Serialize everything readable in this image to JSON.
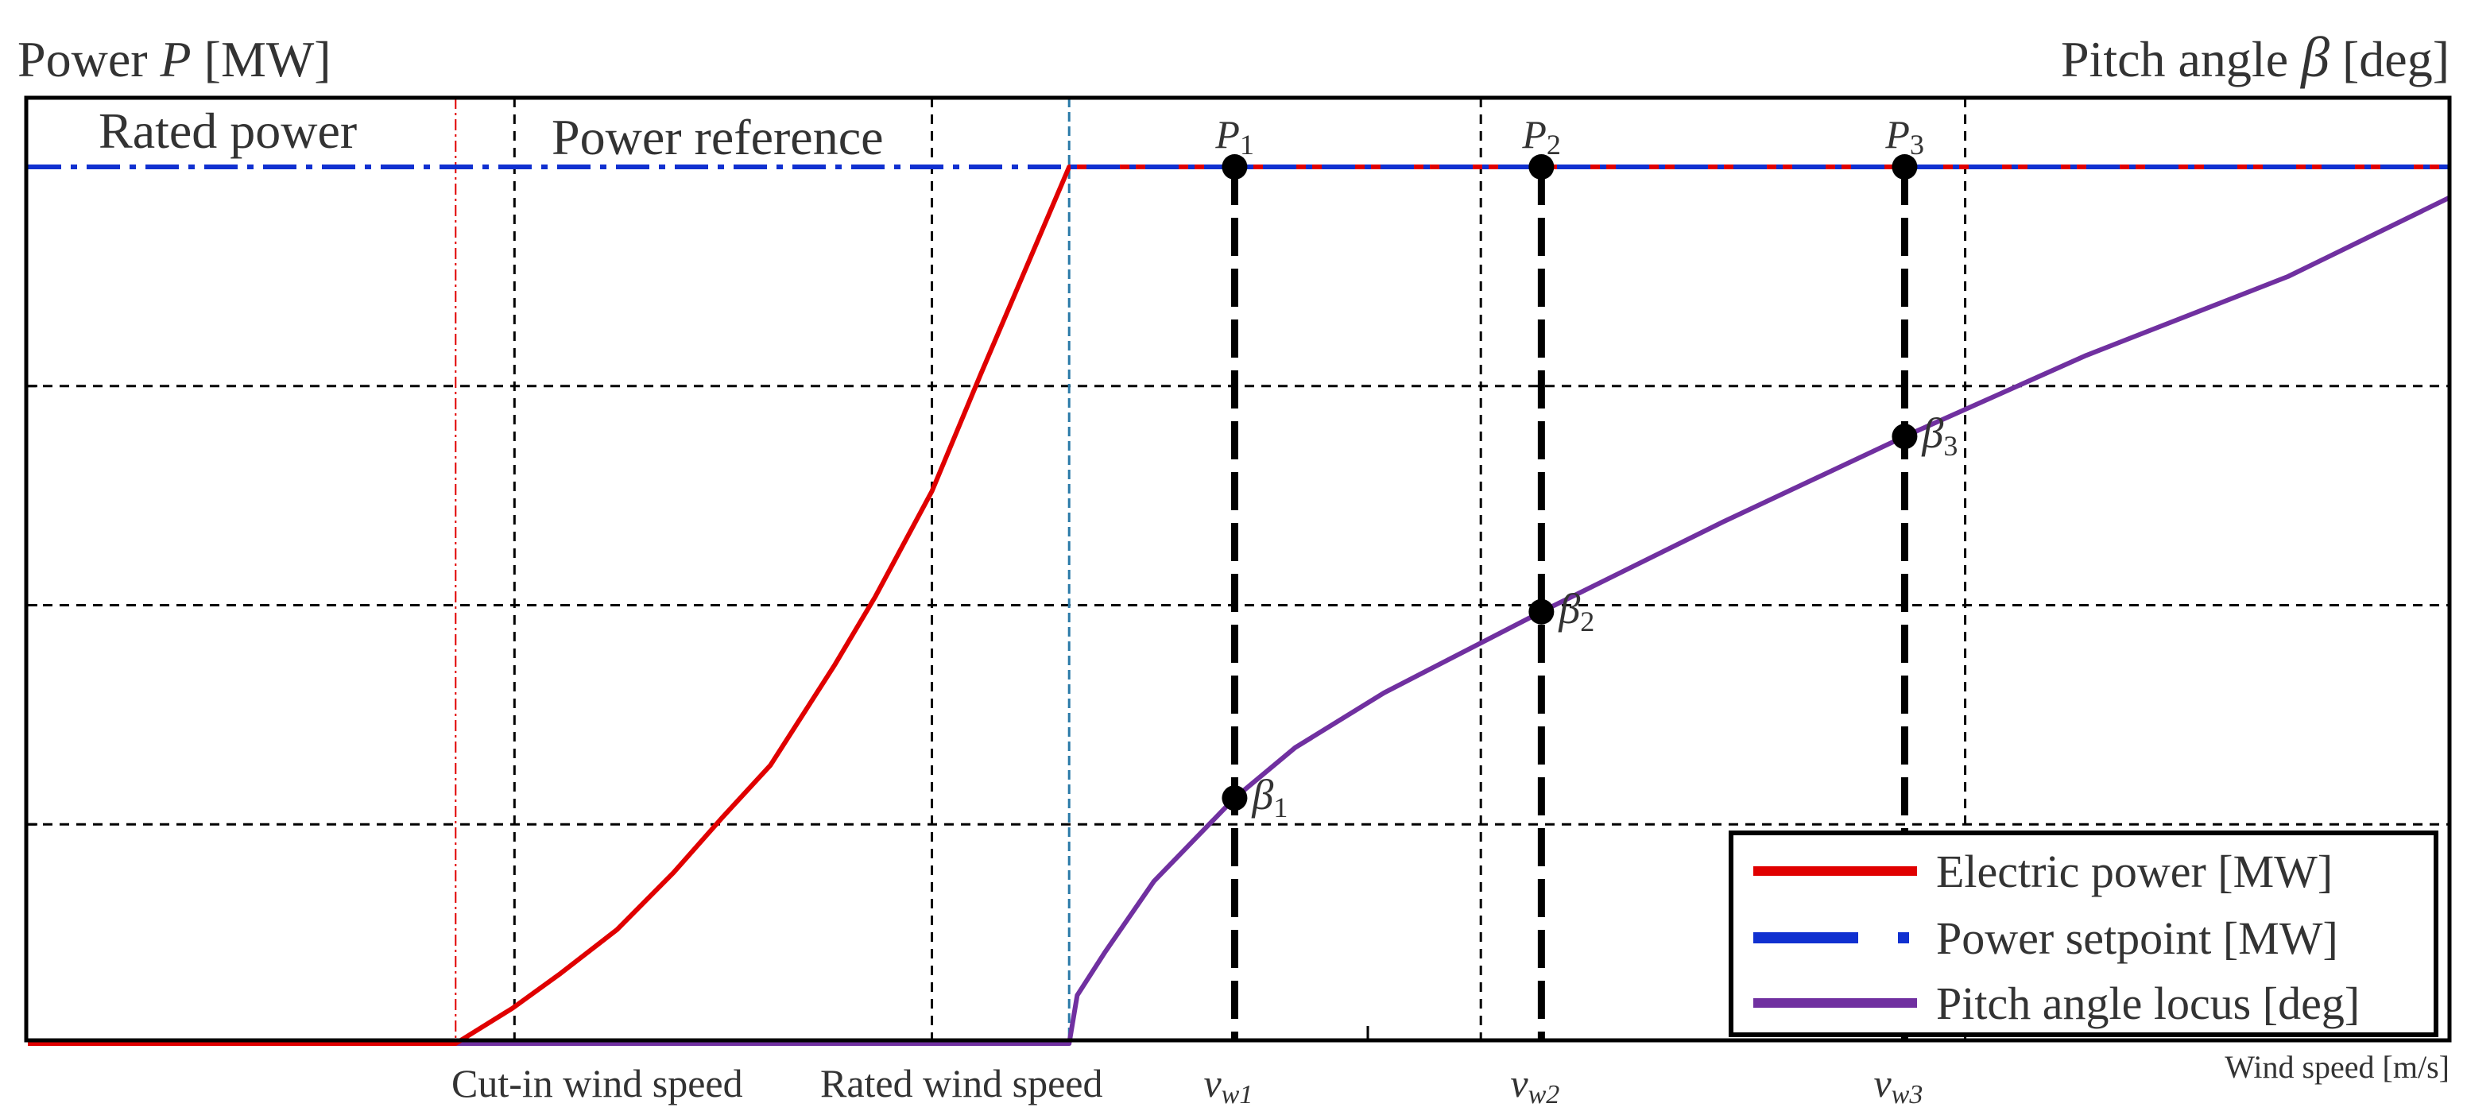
{
  "chart_data": {
    "type": "line",
    "title_left": "Power ",
    "title_left_var": "P",
    "title_left_unit": " [MW]",
    "title_right": "Pitch angle ",
    "title_right_var": "β",
    "title_right_unit": " [deg]",
    "xlabel": "Wind speed [m/s]",
    "region_labels": {
      "rated_power": "Rated power",
      "power_reference": "Power reference"
    },
    "x_tick_labels": {
      "cut_in": "Cut-in wind speed",
      "rated": "Rated wind speed"
    },
    "xlim": [
      0,
      30
    ],
    "ylim": [
      0,
      4
    ],
    "grid": true,
    "cut_in_speed": 5.3,
    "rated_speed": 12.9,
    "operating_points": [
      {
        "speed_label": "v",
        "speed_sub": "w1",
        "power_label": "P",
        "power_sub": "1",
        "pitch_label": "β",
        "pitch_sub": "1",
        "x": 14.95,
        "power": 4.0,
        "pitch": 1.12
      },
      {
        "speed_label": "v",
        "speed_sub": "w2",
        "power_label": "P",
        "power_sub": "2",
        "pitch_label": "β",
        "pitch_sub": "2",
        "x": 18.75,
        "power": 4.0,
        "pitch": 1.97
      },
      {
        "speed_label": "v",
        "speed_sub": "w3",
        "power_label": "P",
        "power_sub": "3",
        "pitch_label": "β",
        "pitch_sub": "3",
        "x": 23.25,
        "power": 4.0,
        "pitch": 2.77
      }
    ],
    "series": [
      {
        "name": "Electric power [MW]",
        "color": "#e00000",
        "x": [
          0,
          5.3,
          6.0,
          6.6,
          7.3,
          8.0,
          8.6,
          9.2,
          10.0,
          10.5,
          11.2,
          11.8,
          12.9,
          14.0,
          20.0,
          30.0
        ],
        "values": [
          0,
          0,
          0.16,
          0.32,
          0.52,
          0.78,
          1.03,
          1.27,
          1.73,
          2.04,
          2.52,
          3.05,
          4.0,
          4.0,
          4.0,
          4.0
        ]
      },
      {
        "name": "Power setpoint [MW]",
        "color": "#1030d0",
        "x": [
          0,
          30
        ],
        "values": [
          4.0,
          4.0
        ]
      },
      {
        "name": "Pitch angle locus [deg]",
        "color": "#7030a0",
        "x": [
          0,
          12.9,
          13.0,
          13.35,
          13.95,
          14.95,
          15.7,
          16.8,
          18.75,
          21.0,
          23.25,
          25.5,
          28.0,
          30.0
        ],
        "values": [
          0,
          0,
          0.22,
          0.42,
          0.74,
          1.12,
          1.35,
          1.6,
          1.97,
          2.38,
          2.77,
          3.14,
          3.5,
          3.86
        ]
      }
    ],
    "legend": {
      "position": "bottom-right",
      "entries": [
        "Electric power [MW]",
        "Power setpoint [MW]",
        "Pitch angle locus [deg]"
      ]
    }
  }
}
